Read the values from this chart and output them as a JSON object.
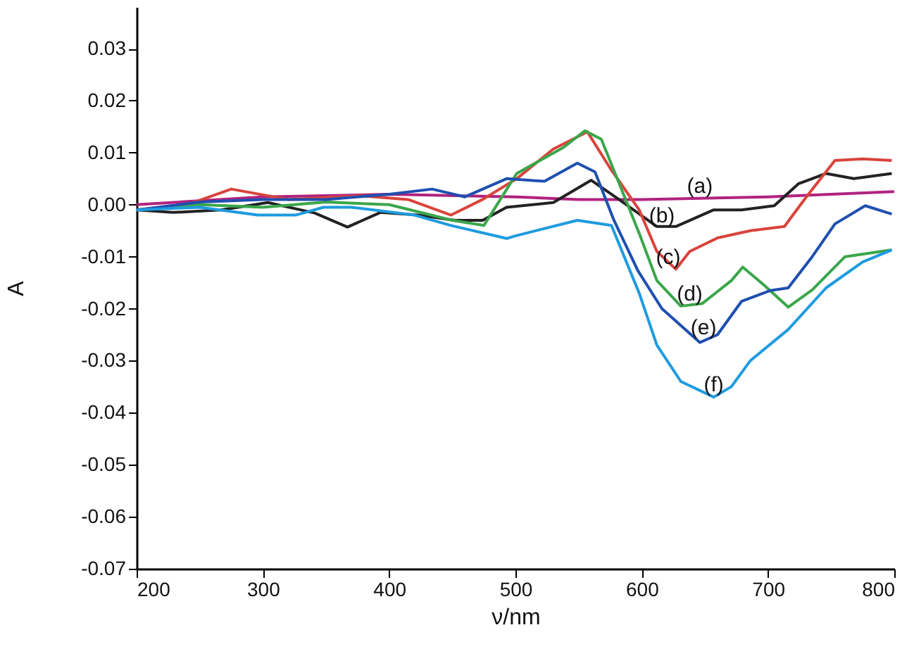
{
  "chart_data": {
    "type": "line",
    "xlabel": "ν/nm",
    "ylabel": "A",
    "xlim": [
      200,
      800
    ],
    "ylim": [
      -0.07,
      0.038
    ],
    "xticks": [
      200,
      300,
      400,
      500,
      600,
      700,
      800
    ],
    "yticks": [
      {
        "value": 0.03,
        "label": "0.03"
      },
      {
        "value": 0.02,
        "label": "0.02"
      },
      {
        "value": 0.01,
        "label": "0.01"
      },
      {
        "value": 0,
        "label": "0.00"
      },
      {
        "value": -0.01,
        "label": "-0.01"
      },
      {
        "value": -0.02,
        "label": "-0.02"
      },
      {
        "value": -0.03,
        "label": "-0.03"
      },
      {
        "value": -0.04,
        "label": "-0.04"
      },
      {
        "value": -0.05,
        "label": "-0.05"
      },
      {
        "value": -0.06,
        "label": "-0.06"
      },
      {
        "value": -0.07,
        "label": "-0.07"
      }
    ],
    "grid": false,
    "marker": "none",
    "line_style": "solid",
    "series": [
      {
        "color": "#b0237f",
        "x": [
          200,
          300,
          400,
          500,
          550,
          600,
          700,
          800
        ],
        "values": [
          0,
          0.0015,
          0.002,
          0.0015,
          0.001,
          0.001,
          0.0015,
          0.0025
        ]
      },
      {
        "color": "#222222",
        "x": [
          200,
          229,
          267,
          304,
          341,
          367,
          393,
          423,
          452,
          474,
          493,
          530,
          560,
          582,
          612,
          627,
          657,
          679,
          705,
          724,
          746,
          768,
          798
        ],
        "values": [
          -0.001,
          -0.0015,
          -0.001,
          0.0004,
          -0.0016,
          -0.0043,
          -0.0015,
          -0.002,
          -0.003,
          -0.003,
          -0.0005,
          0.0004,
          0.0047,
          0.001,
          -0.0042,
          -0.0042,
          -0.001,
          -0.001,
          -0.0002,
          0.004,
          0.006,
          0.005,
          0.006
        ]
      },
      {
        "color": "#d8443c",
        "x": [
          200,
          240,
          275,
          320,
          378,
          415,
          449,
          474,
          501,
          530,
          557,
          575,
          598,
          612,
          627,
          638,
          660,
          686,
          713,
          731,
          753,
          775,
          798
        ],
        "values": [
          -0.001,
          0,
          0.003,
          0.001,
          0.0017,
          0.001,
          -0.002,
          0.001,
          0.005,
          0.0107,
          0.014,
          0.007,
          -0.001,
          -0.009,
          -0.0124,
          -0.009,
          -0.0064,
          -0.005,
          -0.0042,
          0.0017,
          0.0085,
          0.0088,
          0.0085
        ]
      },
      {
        "color": "#3aa64a",
        "x": [
          200,
          250,
          300,
          350,
          400,
          450,
          475,
          501,
          538,
          555,
          568,
          598,
          612,
          631,
          648,
          671,
          680,
          697,
          716,
          735,
          761,
          798
        ],
        "values": [
          -0.001,
          0,
          -0.0005,
          0.0005,
          0,
          -0.003,
          -0.004,
          0.006,
          0.011,
          0.0142,
          0.0126,
          -0.0055,
          -0.0146,
          -0.0195,
          -0.019,
          -0.0146,
          -0.012,
          -0.0155,
          -0.0197,
          -0.0164,
          -0.01,
          -0.0087
        ]
      },
      {
        "color": "#1f4fb0",
        "x": [
          200,
          250,
          300,
          350,
          400,
          434,
          460,
          493,
          523,
          549,
          563,
          578,
          597,
          616,
          646,
          660,
          679,
          702,
          716,
          735,
          753,
          777,
          798
        ],
        "values": [
          -0.001,
          0.0005,
          0.001,
          0.001,
          0.002,
          0.003,
          0.0015,
          0.005,
          0.0045,
          0.008,
          0.0063,
          -0.003,
          -0.0127,
          -0.02,
          -0.0265,
          -0.025,
          -0.0186,
          -0.0165,
          -0.016,
          -0.01,
          -0.0037,
          -0.0002,
          -0.0018
        ]
      },
      {
        "color": "#1e9be0",
        "x": [
          200,
          250,
          296,
          326,
          348,
          370,
          420,
          449,
          493,
          500,
          549,
          576,
          598,
          612,
          631,
          657,
          671,
          686,
          716,
          746,
          775,
          798
        ],
        "values": [
          -0.001,
          -0.0005,
          -0.002,
          -0.002,
          -0.0005,
          -0.0005,
          -0.002,
          -0.004,
          -0.0065,
          -0.006,
          -0.003,
          -0.004,
          -0.017,
          -0.027,
          -0.034,
          -0.037,
          -0.035,
          -0.03,
          -0.024,
          -0.016,
          -0.011,
          -0.0087
        ]
      }
    ],
    "annotations": [
      {
        "text": "(a)",
        "x": 646,
        "y": 0.0012
      },
      {
        "text": "(b)",
        "x": 616,
        "y": -0.0045
      },
      {
        "text": "(c)",
        "x": 621,
        "y": -0.0125
      },
      {
        "text": "(d)",
        "x": 638,
        "y": -0.0195
      },
      {
        "text": "(e)",
        "x": 649,
        "y": -0.026
      },
      {
        "text": "(f)",
        "x": 657,
        "y": -0.037
      }
    ]
  }
}
